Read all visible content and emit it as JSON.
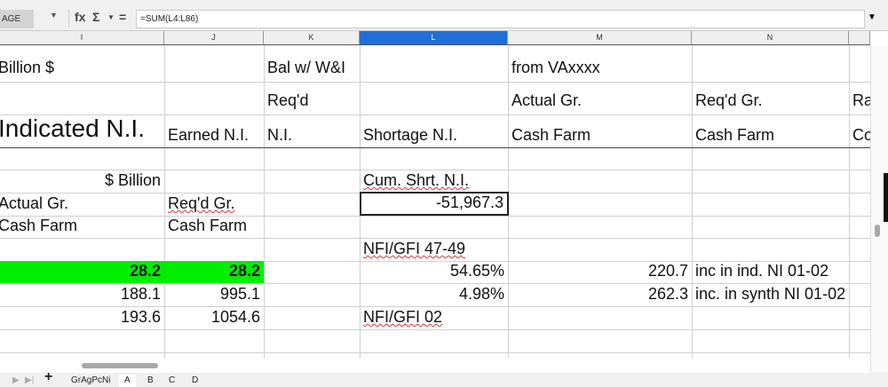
{
  "formula_bar": {
    "name_box": "AGE",
    "formula": "=SUM(L4:L86)",
    "fx_icon": "fx",
    "sum_icon": "Σ",
    "equals_icon": "="
  },
  "columns": [
    "I",
    "J",
    "K",
    "L",
    "M",
    "N"
  ],
  "selected_column": "L",
  "cells": {
    "I1": "Billion $",
    "K1": "Bal w/ W&I",
    "M1": "from VAxxxx",
    "K2": "Req'd",
    "M2": "Actual Gr.",
    "N2": "Req'd Gr.",
    "O2": "Ra",
    "I3": "Indicated N.I.",
    "J3": "Earned N.I.",
    "K3": "N.I.",
    "L3": "Shortage N.I.",
    "M3": "Cash Farm",
    "N3": "Cash Farm",
    "O3": "Co",
    "I5": "$ Billion",
    "L5": "Cum. Shrt. N.I.",
    "I6": "Actual Gr.",
    "J6": "Req'd Gr.",
    "L6": "-51,967.3",
    "I7": "Cash Farm",
    "J7": "Cash Farm",
    "L8": "NFI/GFI 47-49",
    "I9": "28.2",
    "J9": "28.2",
    "L9": "54.65%",
    "M9": "220.7",
    "N9": "inc in ind. NI 01-02",
    "I10": "188.1",
    "J10": "995.1",
    "L10": "4.98%",
    "M10": "262.3",
    "N10": "inc. in synth NI 01-02",
    "I11": "193.6",
    "J11": "1054.6",
    "L11": "NFI/GFI 02"
  },
  "highlight_color": "#00ee00",
  "sheet_tabs": [
    "GrAgPcNi",
    "A",
    "B",
    "C",
    "D"
  ],
  "active_tab": "A"
}
